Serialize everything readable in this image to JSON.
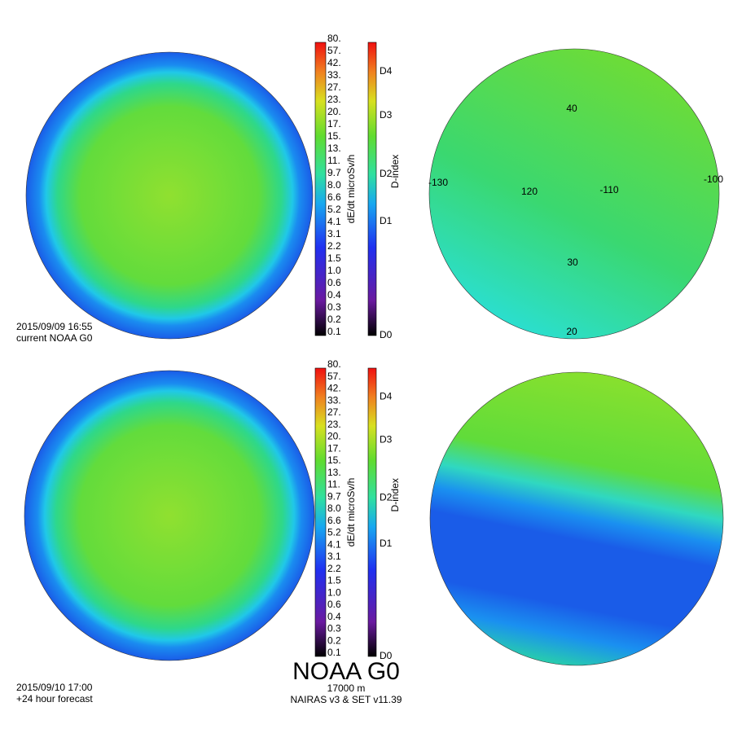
{
  "panels": [
    {
      "timestamp": "2015/09/09 16:55",
      "caption": "current NOAA G0",
      "dose_colorbar": {
        "title": "dE/dt microSv/h",
        "labels": [
          "0.1",
          "0.2",
          "0.3",
          "0.4",
          "0.6",
          "1.0",
          "1.5",
          "2.2",
          "3.1",
          "4.1",
          "5.2",
          "6.6",
          "8.0",
          "9.7",
          "11.",
          "13.",
          "15.",
          "17.",
          "20.",
          "23.",
          "27.",
          "33.",
          "42.",
          "57.",
          "80."
        ]
      },
      "dindex_colorbar": {
        "title": "D-index",
        "labels": [
          "D0",
          "D1",
          "D2",
          "D3",
          "D4"
        ]
      },
      "map_labels": [
        "40",
        "-130",
        "120",
        "-110",
        "-100",
        "30",
        "20"
      ]
    },
    {
      "timestamp": "2015/09/10 17:00",
      "caption": "+24 hour forecast",
      "dose_colorbar": {
        "title": "dE/dt microSv/h",
        "labels": [
          "0.1",
          "0.2",
          "0.3",
          "0.4",
          "0.6",
          "1.0",
          "1.5",
          "2.2",
          "3.1",
          "4.1",
          "5.2",
          "6.6",
          "8.0",
          "9.7",
          "11.",
          "13.",
          "15.",
          "17.",
          "20.",
          "23.",
          "27.",
          "33.",
          "42.",
          "57.",
          "80."
        ]
      },
      "dindex_colorbar": {
        "title": "D-index",
        "labels": [
          "D0",
          "D1",
          "D2",
          "D3",
          "D4"
        ]
      }
    }
  ],
  "footer": {
    "title": "NOAA G0",
    "altitude": "17000 m",
    "model": "NAIRAS v3 & SET v11.39"
  }
}
